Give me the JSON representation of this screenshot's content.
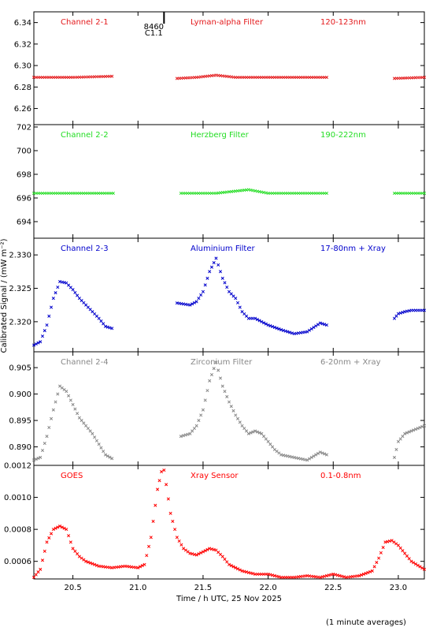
{
  "chart_data": {
    "type": "scatter",
    "xlabel": "Time / h UTC, 25 Nov 2025",
    "ylabel": "Calibrated Signal / (mW m⁻²)",
    "note": "(1 minute averages)",
    "xlim": [
      20.2,
      23.2
    ],
    "xticks": [
      "20.5",
      "21.0",
      "21.5",
      "22.0",
      "22.5",
      "23.0"
    ],
    "flare_marker": {
      "x": 21.2,
      "labels": [
        "8460",
        "C1.1"
      ]
    },
    "panels": [
      {
        "name": "Channel 2-1",
        "filter": "Lyman-alpha Filter",
        "band": "120-123nm",
        "color": "#e41a1c",
        "ylim": [
          6.245,
          6.35
        ],
        "yticks": [
          "6.26",
          "6.28",
          "6.30",
          "6.32",
          "6.34"
        ],
        "segments": [
          {
            "x": [
              20.2,
              20.5,
              20.8
            ],
            "y": [
              6.289,
              6.289,
              6.29
            ]
          },
          {
            "x": [
              21.3,
              21.45,
              21.6,
              21.75,
              22.0,
              22.2,
              22.45
            ],
            "y": [
              6.288,
              6.289,
              6.291,
              6.289,
              6.289,
              6.289,
              6.289
            ]
          },
          {
            "x": [
              22.97,
              23.2
            ],
            "y": [
              6.288,
              6.289
            ]
          }
        ]
      },
      {
        "name": "Channel 2-2",
        "filter": "Herzberg Filter",
        "band": "190-222nm",
        "color": "#22dd22",
        "ylim": [
          692.6,
          702.2
        ],
        "yticks": [
          "694",
          "696",
          "698",
          "700",
          "702"
        ],
        "segments": [
          {
            "x": [
              20.2,
              20.5,
              20.81
            ],
            "y": [
              696.4,
              696.4,
              696.4
            ]
          },
          {
            "x": [
              21.33,
              21.6,
              21.85,
              22.0,
              22.2,
              22.45
            ],
            "y": [
              696.4,
              696.4,
              696.7,
              696.4,
              696.4,
              696.4
            ]
          },
          {
            "x": [
              22.97,
              23.2
            ],
            "y": [
              696.4,
              696.4
            ]
          }
        ]
      },
      {
        "name": "Channel 2-3",
        "filter": "Aluminium Filter",
        "band": "17-80nm + Xray",
        "color": "#0000cc",
        "ylim": [
          2.3155,
          2.3325
        ],
        "yticks": [
          "2.320",
          "2.325",
          "2.330"
        ],
        "segments": [
          {
            "x": [
              20.2,
              20.25,
              20.3,
              20.35,
              20.4,
              20.45,
              20.5,
              20.55,
              20.6,
              20.65,
              20.7,
              20.75,
              20.8
            ],
            "y": [
              2.3165,
              2.317,
              2.3195,
              2.3235,
              2.326,
              2.3258,
              2.3248,
              2.3235,
              2.3225,
              2.3215,
              2.3205,
              2.3193,
              2.319
            ]
          },
          {
            "x": [
              21.3,
              21.4,
              21.45,
              21.5,
              21.55,
              21.6,
              21.65,
              21.7,
              21.75,
              21.8,
              21.85,
              21.9,
              22.0,
              22.1,
              22.2,
              22.3,
              22.4,
              22.45
            ],
            "y": [
              2.3228,
              2.3225,
              2.323,
              2.3245,
              2.3275,
              2.3295,
              2.3265,
              2.3245,
              2.3235,
              2.3215,
              2.3205,
              2.3205,
              2.3195,
              2.3188,
              2.3182,
              2.3185,
              2.3198,
              2.3195
            ]
          },
          {
            "x": [
              22.97,
              23.0,
              23.05,
              23.1,
              23.2
            ],
            "y": [
              2.3205,
              2.3212,
              2.3215,
              2.3217,
              2.3217
            ]
          }
        ]
      },
      {
        "name": "Channel 2-4",
        "filter": "Zirconium Filter",
        "band": "6-20nm + Xray",
        "color": "#888888",
        "ylim": [
          0.8865,
          0.908
        ],
        "yticks": [
          "0.890",
          "0.895",
          "0.900",
          "0.905"
        ],
        "segments": [
          {
            "x": [
              20.2,
              20.25,
              20.3,
              20.35,
              20.4,
              20.45,
              20.5,
              20.55,
              20.6,
              20.65,
              20.7,
              20.75,
              20.8
            ],
            "y": [
              0.8875,
              0.888,
              0.892,
              0.897,
              0.9015,
              0.9005,
              0.898,
              0.8955,
              0.894,
              0.8925,
              0.8905,
              0.8885,
              0.8878
            ]
          },
          {
            "x": [
              21.33,
              21.4,
              21.45,
              21.5,
              21.55,
              21.6,
              21.65,
              21.7,
              21.75,
              21.8,
              21.85,
              21.9,
              21.95,
              22.0,
              22.05,
              22.1,
              22.2,
              22.3,
              22.4,
              22.45
            ],
            "y": [
              0.892,
              0.8925,
              0.894,
              0.897,
              0.9025,
              0.906,
              0.9015,
              0.8985,
              0.896,
              0.894,
              0.8925,
              0.893,
              0.8925,
              0.891,
              0.8895,
              0.8885,
              0.888,
              0.8875,
              0.889,
              0.8885
            ]
          },
          {
            "x": [
              22.97,
              23.0,
              23.05,
              23.1,
              23.15,
              23.2
            ],
            "y": [
              0.888,
              0.891,
              0.8925,
              0.893,
              0.8935,
              0.894
            ]
          }
        ]
      },
      {
        "name": "GOES",
        "filter": "Xray Sensor",
        "band": "0.1-0.8nm",
        "color": "#ff0000",
        "ylim": [
          0.00049,
          0.0012
        ],
        "yticks": [
          "0.0006",
          "0.0008",
          "0.0010",
          "0.0012"
        ],
        "segments": [
          {
            "x": [
              20.2,
              20.25,
              20.3,
              20.35,
              20.4,
              20.45,
              20.5,
              20.55,
              20.6,
              20.7,
              20.8,
              20.9,
              21.0,
              21.05,
              21.1,
              21.15,
              21.18,
              21.2,
              21.25,
              21.3,
              21.35,
              21.4,
              21.45,
              21.5,
              21.55,
              21.6,
              21.65,
              21.7,
              21.8,
              21.9,
              22.0,
              22.1,
              22.2,
              22.3,
              22.4,
              22.5,
              22.6,
              22.7,
              22.8,
              22.85,
              22.9,
              22.95,
              23.0,
              23.05,
              23.1,
              23.2
            ],
            "y": [
              0.0005,
              0.00055,
              0.00072,
              0.0008,
              0.00082,
              0.0008,
              0.00068,
              0.00063,
              0.0006,
              0.00057,
              0.00056,
              0.00057,
              0.00056,
              0.00058,
              0.00075,
              0.00105,
              0.00116,
              0.00117,
              0.0009,
              0.00075,
              0.00068,
              0.00065,
              0.00064,
              0.00066,
              0.00068,
              0.00067,
              0.00063,
              0.00058,
              0.00054,
              0.00052,
              0.00052,
              0.0005,
              0.0005,
              0.00051,
              0.0005,
              0.00052,
              0.0005,
              0.00051,
              0.00054,
              0.00062,
              0.00072,
              0.00073,
              0.0007,
              0.00065,
              0.0006,
              0.00055
            ]
          }
        ]
      }
    ]
  }
}
